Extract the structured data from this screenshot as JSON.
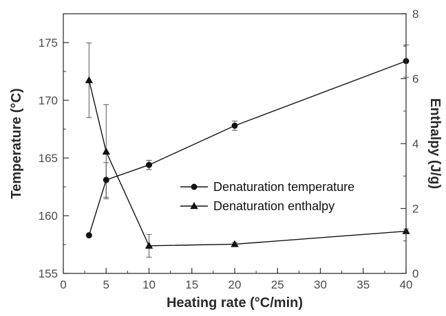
{
  "chart_data": {
    "type": "line",
    "title": "",
    "xlabel": "Heating rate (°C/min)",
    "ylabel": "Temperature (°C)",
    "y2label": "Enthalpy (J/g)",
    "xlim": [
      0,
      40
    ],
    "ylim": [
      155,
      177.5
    ],
    "y2lim": [
      0,
      8
    ],
    "x_ticks": [
      "0",
      "5",
      "10",
      "15",
      "20",
      "25",
      "30",
      "35",
      "40"
    ],
    "y_ticks": [
      "155",
      "160",
      "165",
      "170",
      "175"
    ],
    "y2_ticks": [
      "0",
      "2",
      "4",
      "6",
      "8"
    ],
    "grid": false,
    "legend_position": "center-right",
    "series": [
      {
        "name": "Denaturation temperature",
        "axis": "left",
        "marker": "circle",
        "color": "#111111",
        "x": [
          3,
          5,
          10,
          20,
          40
        ],
        "y": [
          158.3,
          163.1,
          164.4,
          167.8,
          173.4
        ],
        "error": [
          0,
          1.5,
          0.4,
          0.4,
          1.4
        ]
      },
      {
        "name": "Denaturation enthalpy",
        "axis": "right",
        "marker": "triangle",
        "color": "#111111",
        "x": [
          3,
          5,
          10,
          20,
          40
        ],
        "y": [
          5.95,
          3.75,
          0.85,
          0.9,
          1.3
        ],
        "error": [
          1.15,
          1.45,
          0.35,
          0.05,
          0.07
        ]
      }
    ]
  }
}
